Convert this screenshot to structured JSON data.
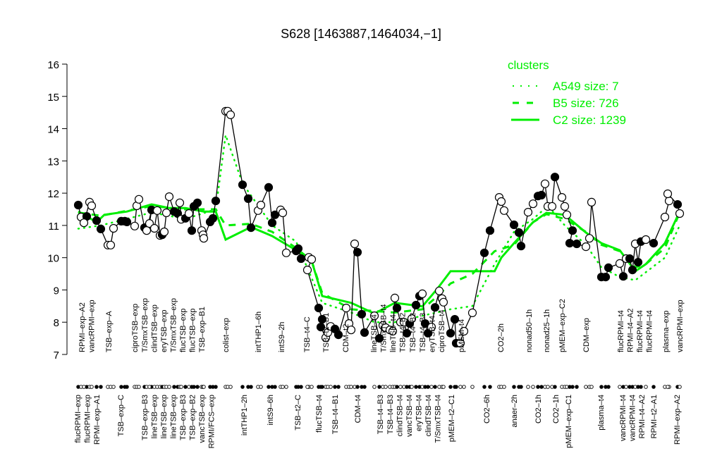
{
  "chart_data": {
    "type": "line",
    "title": "S628 [1463887,1464034,−1]",
    "ylim": [
      7,
      16
    ],
    "yticks": [
      "7",
      "8",
      "9",
      "10",
      "11",
      "12",
      "13",
      "14",
      "15",
      "16"
    ],
    "grid": false,
    "legend": {
      "title": "clusters",
      "placement": "top-right",
      "color": "#00ee00",
      "entries": [
        {
          "label": "A549 size: 7",
          "style": "dotted"
        },
        {
          "label": "B5 size: 726",
          "style": "dashed"
        },
        {
          "label": "C2 size: 1239",
          "style": "solid"
        }
      ]
    },
    "points": [
      [
        11.63,
        1
      ],
      [
        11.26,
        0
      ],
      [
        11.28,
        1
      ],
      [
        11.08,
        0
      ],
      [
        11.72,
        0
      ],
      [
        11.61,
        0
      ],
      [
        11.15,
        1
      ],
      [
        10.89,
        1
      ],
      [
        10.39,
        0
      ],
      [
        10.39,
        0
      ],
      [
        10.91,
        0
      ],
      [
        11.13,
        1
      ],
      [
        11.13,
        1
      ],
      [
        11.11,
        1
      ],
      [
        10.98,
        0
      ],
      [
        11.61,
        0
      ],
      [
        11.81,
        0
      ],
      [
        10.93,
        1
      ],
      [
        10.84,
        0
      ],
      [
        11.48,
        1
      ],
      [
        11.06,
        0
      ],
      [
        10.91,
        0
      ],
      [
        11.46,
        0
      ],
      [
        10.69,
        0
      ],
      [
        10.71,
        1
      ],
      [
        10.8,
        0
      ],
      [
        11.39,
        0
      ],
      [
        11.89,
        0
      ],
      [
        11.43,
        1
      ],
      [
        11.37,
        1
      ],
      [
        11.7,
        0
      ],
      [
        11.19,
        0
      ],
      [
        11.22,
        1
      ],
      [
        11.37,
        0
      ],
      [
        10.84,
        1
      ],
      [
        11.59,
        1
      ],
      [
        11.7,
        1
      ],
      [
        10.84,
        0
      ],
      [
        10.71,
        0
      ],
      [
        10.6,
        0
      ],
      [
        11.11,
        1
      ],
      [
        11.22,
        1
      ],
      [
        11.76,
        1
      ],
      [
        14.54,
        0
      ],
      [
        14.54,
        0
      ],
      [
        14.43,
        0
      ],
      [
        12.26,
        1
      ],
      [
        11.83,
        1
      ],
      [
        10.93,
        1
      ],
      [
        11.46,
        0
      ],
      [
        11.63,
        0
      ],
      [
        12.18,
        1
      ],
      [
        11.08,
        1
      ],
      [
        11.33,
        1
      ],
      [
        11.48,
        0
      ],
      [
        11.39,
        0
      ],
      [
        10.15,
        0
      ],
      [
        10.21,
        1
      ],
      [
        10.28,
        1
      ],
      [
        9.97,
        1
      ],
      [
        10.01,
        0
      ],
      [
        9.95,
        0
      ],
      [
        9.62,
        0
      ],
      [
        8.44,
        1
      ],
      [
        8.09,
        1
      ],
      [
        7.85,
        1
      ],
      [
        7.52,
        0
      ],
      [
        7.68,
        0
      ],
      [
        7.87,
        0
      ],
      [
        7.79,
        1
      ],
      [
        7.61,
        1
      ],
      [
        8.44,
        0
      ],
      [
        7.96,
        0
      ],
      [
        7.76,
        0
      ],
      [
        10.43,
        0
      ],
      [
        10.17,
        1
      ],
      [
        8.25,
        1
      ],
      [
        7.68,
        1
      ],
      [
        8.2,
        0
      ],
      [
        7.5,
        1
      ],
      [
        7.9,
        0
      ],
      [
        7.83,
        0
      ],
      [
        7.76,
        0
      ],
      [
        7.72,
        0
      ],
      [
        8.75,
        0
      ],
      [
        8.44,
        1
      ],
      [
        8.0,
        0
      ],
      [
        8.0,
        0
      ],
      [
        7.66,
        1
      ],
      [
        7.96,
        1
      ],
      [
        8.11,
        0
      ],
      [
        8.53,
        1
      ],
      [
        8.81,
        1
      ],
      [
        8.88,
        0
      ],
      [
        7.96,
        1
      ],
      [
        7.66,
        1
      ],
      [
        7.85,
        0
      ],
      [
        8.46,
        1
      ],
      [
        8.97,
        0
      ],
      [
        8.73,
        0
      ],
      [
        8.62,
        0
      ],
      [
        7.66,
        1
      ],
      [
        8.09,
        1
      ],
      [
        7.35,
        1
      ],
      [
        7.35,
        0
      ],
      [
        7.72,
        0
      ],
      [
        8.29,
        0
      ],
      [
        10.15,
        1
      ],
      [
        10.84,
        1
      ],
      [
        11.87,
        0
      ],
      [
        11.74,
        0
      ],
      [
        11.46,
        0
      ],
      [
        11.02,
        1
      ],
      [
        10.78,
        1
      ],
      [
        10.36,
        1
      ],
      [
        11.41,
        0
      ],
      [
        11.67,
        0
      ],
      [
        11.91,
        1
      ],
      [
        11.94,
        1
      ],
      [
        12.29,
        0
      ],
      [
        11.59,
        0
      ],
      [
        11.59,
        0
      ],
      [
        12.5,
        1
      ],
      [
        11.87,
        0
      ],
      [
        11.59,
        0
      ],
      [
        11.33,
        0
      ],
      [
        10.84,
        1
      ],
      [
        10.45,
        1
      ],
      [
        10.43,
        1
      ],
      [
        10.34,
        0
      ],
      [
        10.6,
        0
      ],
      [
        11.72,
        0
      ],
      [
        9.4,
        1
      ],
      [
        9.4,
        1
      ],
      [
        9.69,
        1
      ],
      [
        9.82,
        0
      ],
      [
        9.42,
        1
      ],
      [
        9.97,
        0
      ],
      [
        9.97,
        1
      ],
      [
        9.62,
        1
      ],
      [
        10.43,
        0
      ],
      [
        9.86,
        1
      ],
      [
        10.5,
        1
      ],
      [
        10.56,
        0
      ],
      [
        10.45,
        1
      ],
      [
        11.26,
        0
      ],
      [
        11.76,
        0
      ],
      [
        11.98,
        0
      ],
      [
        11.65,
        1
      ],
      [
        11.37,
        0
      ]
    ],
    "series": [
      {
        "name": "A549 size: 7",
        "style": "dotted",
        "points": [
          [
            0,
            10.9
          ],
          [
            7,
            11.0
          ],
          [
            19,
            11.4
          ],
          [
            32,
            11.2
          ],
          [
            42,
            11.5
          ],
          [
            43,
            13.8
          ],
          [
            46,
            12.3
          ],
          [
            52,
            11.0
          ],
          [
            57,
            10.5
          ],
          [
            64,
            8.6
          ],
          [
            73,
            8.3
          ],
          [
            78,
            8.0
          ],
          [
            84,
            8.0
          ],
          [
            93,
            8.2
          ],
          [
            101,
            8.4
          ],
          [
            106,
            8.5
          ],
          [
            108.5,
            9.8
          ],
          [
            112,
            10.8
          ],
          [
            116,
            11.2
          ],
          [
            120,
            11.6
          ],
          [
            124,
            11.0
          ],
          [
            129,
            10.4
          ],
          [
            132,
            9.7
          ],
          [
            135,
            9.4
          ],
          [
            140,
            9.3
          ],
          [
            145,
            10.0
          ],
          [
            149,
            11.0
          ]
        ]
      },
      {
        "name": "B5 size: 726",
        "style": "dashed",
        "points": [
          [
            0,
            11.4
          ],
          [
            7,
            11.3
          ],
          [
            19,
            11.6
          ],
          [
            32,
            11.5
          ],
          [
            42,
            11.5
          ],
          [
            43,
            11.0
          ],
          [
            48,
            11.05
          ],
          [
            52,
            10.8
          ],
          [
            57,
            10.3
          ],
          [
            61,
            9.9
          ],
          [
            64,
            8.9
          ],
          [
            73,
            8.4
          ],
          [
            84,
            8.3
          ],
          [
            93,
            8.4
          ],
          [
            97.5,
            8.8
          ],
          [
            101,
            9.2
          ],
          [
            106,
            9.5
          ],
          [
            108.5,
            10.2
          ],
          [
            112,
            10.4
          ],
          [
            116,
            11.1
          ],
          [
            119.5,
            11.35
          ],
          [
            124,
            11.2
          ],
          [
            129,
            10.8
          ],
          [
            132,
            10.4
          ],
          [
            135,
            10.2
          ],
          [
            140,
            9.7
          ],
          [
            143,
            9.8
          ],
          [
            145,
            10.3
          ],
          [
            149,
            11.4
          ]
        ]
      },
      {
        "name": "C2 size: 1239",
        "style": "solid",
        "points": [
          [
            0,
            11.43
          ],
          [
            6,
            11.1
          ],
          [
            7.5,
            11.33
          ],
          [
            13,
            11.43
          ],
          [
            19,
            11.65
          ],
          [
            27,
            11.54
          ],
          [
            32,
            11.54
          ],
          [
            39,
            11.43
          ],
          [
            42,
            11.43
          ],
          [
            43,
            10.56
          ],
          [
            48,
            10.95
          ],
          [
            52,
            10.67
          ],
          [
            57,
            10.23
          ],
          [
            61,
            9.9
          ],
          [
            64,
            8.81
          ],
          [
            73,
            8.6
          ],
          [
            78,
            8.27
          ],
          [
            84,
            8.6
          ],
          [
            93,
            8.49
          ],
          [
            97.5,
            9.03
          ],
          [
            101,
            9.58
          ],
          [
            106,
            9.58
          ],
          [
            108.5,
            9.58
          ],
          [
            110,
            10.0
          ],
          [
            112,
            10.45
          ],
          [
            116,
            11.1
          ],
          [
            119.5,
            11.39
          ],
          [
            124,
            11.33
          ],
          [
            129,
            10.78
          ],
          [
            132,
            10.45
          ],
          [
            135,
            10.23
          ],
          [
            140,
            9.58
          ],
          [
            143,
            9.8
          ],
          [
            145,
            10.45
          ],
          [
            149,
            11.43
          ]
        ]
      }
    ],
    "labels_top": [
      "RPMI–exp–A2",
      "vancRPMI–exp",
      "TSB–exp–A",
      "ciproTSB–exp",
      "T/SmxTSB–exp",
      "clindTSB–exp",
      "eryTSB–exp",
      "T/SmxTSB–exp",
      "flucTSB–exp",
      "flucTSB–exp",
      "TSB–exp–B1",
      "colist–exp",
      "intTHP1–6h",
      "intS9–2h",
      "TSB–t4–C",
      "TSB–t2–B1",
      "CDM–t2",
      "lineTSB–t4",
      "T/SmxTSB–t4",
      "lineTSB–t4",
      "TSB–t4–B2",
      "TSB–t4–B2",
      "TSB–t4–B3",
      "eryTSB–t4",
      "ciproTSB–t4",
      "pMEM–t4",
      "CO2–2h",
      "nonad50–1h",
      "nonad25–1h",
      "pMEM–exp–C2",
      "CDM–exp",
      "flucRPMI–t4",
      "RPMI–t4–A2",
      "flucRPMI–t4",
      "flucRPMI–t4",
      "plasma–exp",
      "vancRPMI–exp"
    ],
    "labels_bottom": [
      "flucRPMI–exp",
      "flucRPMI–exp",
      "RPMI–exp–A1",
      "TSB–exp–C",
      "TSB–exp–B3",
      "lineTSB–exp",
      "lineTSB–exp",
      "lineTSB–exp",
      "TSB–exp–B3",
      "TSB–exp–B2",
      "vancTSB–exp",
      "RPMI/FCS–exp",
      "intTHP1–2h",
      "intS9–6h",
      "TSB–t2–C",
      "flucTSB–t4",
      "TSB–t4–B1",
      "CDM–t4",
      "TSB–t4–B3",
      "TSB–t4–B3",
      "clindTSB–t4",
      "vancTSB–t4",
      "eryTSB–t4",
      "clindTSB–t4",
      "T/SmxTSB–t4",
      "pMEM–t2–C1",
      "CO2–6h",
      "anaer–2h",
      "CO2–1h",
      "CO2–1h",
      "pMEM–exp–C1",
      "plasma–t4",
      "vancRPMI–t4",
      "vancRPMI–t4",
      "RPMI–t4–A2",
      "RPMI–t2–A1",
      "RPMI–exp–A2"
    ]
  }
}
